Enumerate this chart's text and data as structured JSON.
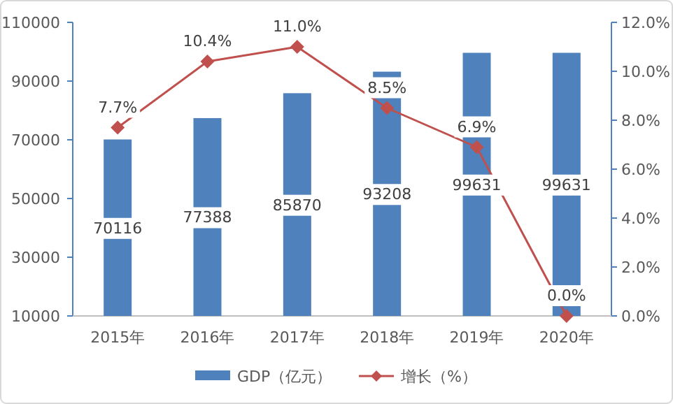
{
  "chart_data": {
    "type": "bar",
    "categories": [
      "2015年",
      "2016年",
      "2017年",
      "2018年",
      "2019年",
      "2020年"
    ],
    "series": [
      {
        "name": "GDP（亿元）",
        "color": "#4f81bd",
        "values": [
          70116,
          77388,
          85870,
          93208,
          99631,
          99631
        ],
        "value_labels": [
          "70116",
          "77388",
          "85870",
          "93208",
          "99631",
          "99631"
        ]
      },
      {
        "name": "增长（%）",
        "type": "line",
        "axis": "y2",
        "color": "#c0504d",
        "marker": "diamond",
        "values": [
          7.7,
          10.4,
          11.0,
          8.5,
          6.9,
          0.0
        ],
        "value_labels": [
          "7.7%",
          "10.4%",
          "11.0%",
          "8.5%",
          "6.9%",
          "0.0%"
        ]
      }
    ],
    "ylim": [
      10000,
      110000
    ],
    "yticks": [
      10000,
      30000,
      50000,
      70000,
      90000,
      110000
    ],
    "y2lim": [
      0,
      12
    ],
    "y2ticks": [
      {
        "value": 0,
        "label": "0.0%"
      },
      {
        "value": 2,
        "label": "2.0%"
      },
      {
        "value": 4,
        "label": "4.0%"
      },
      {
        "value": 6,
        "label": "6.0%"
      },
      {
        "value": 8,
        "label": "8.0%"
      },
      {
        "value": 10,
        "label": "10.0%"
      },
      {
        "value": 12,
        "label": "12.0%"
      }
    ],
    "legend": "bottom",
    "grid": false
  }
}
